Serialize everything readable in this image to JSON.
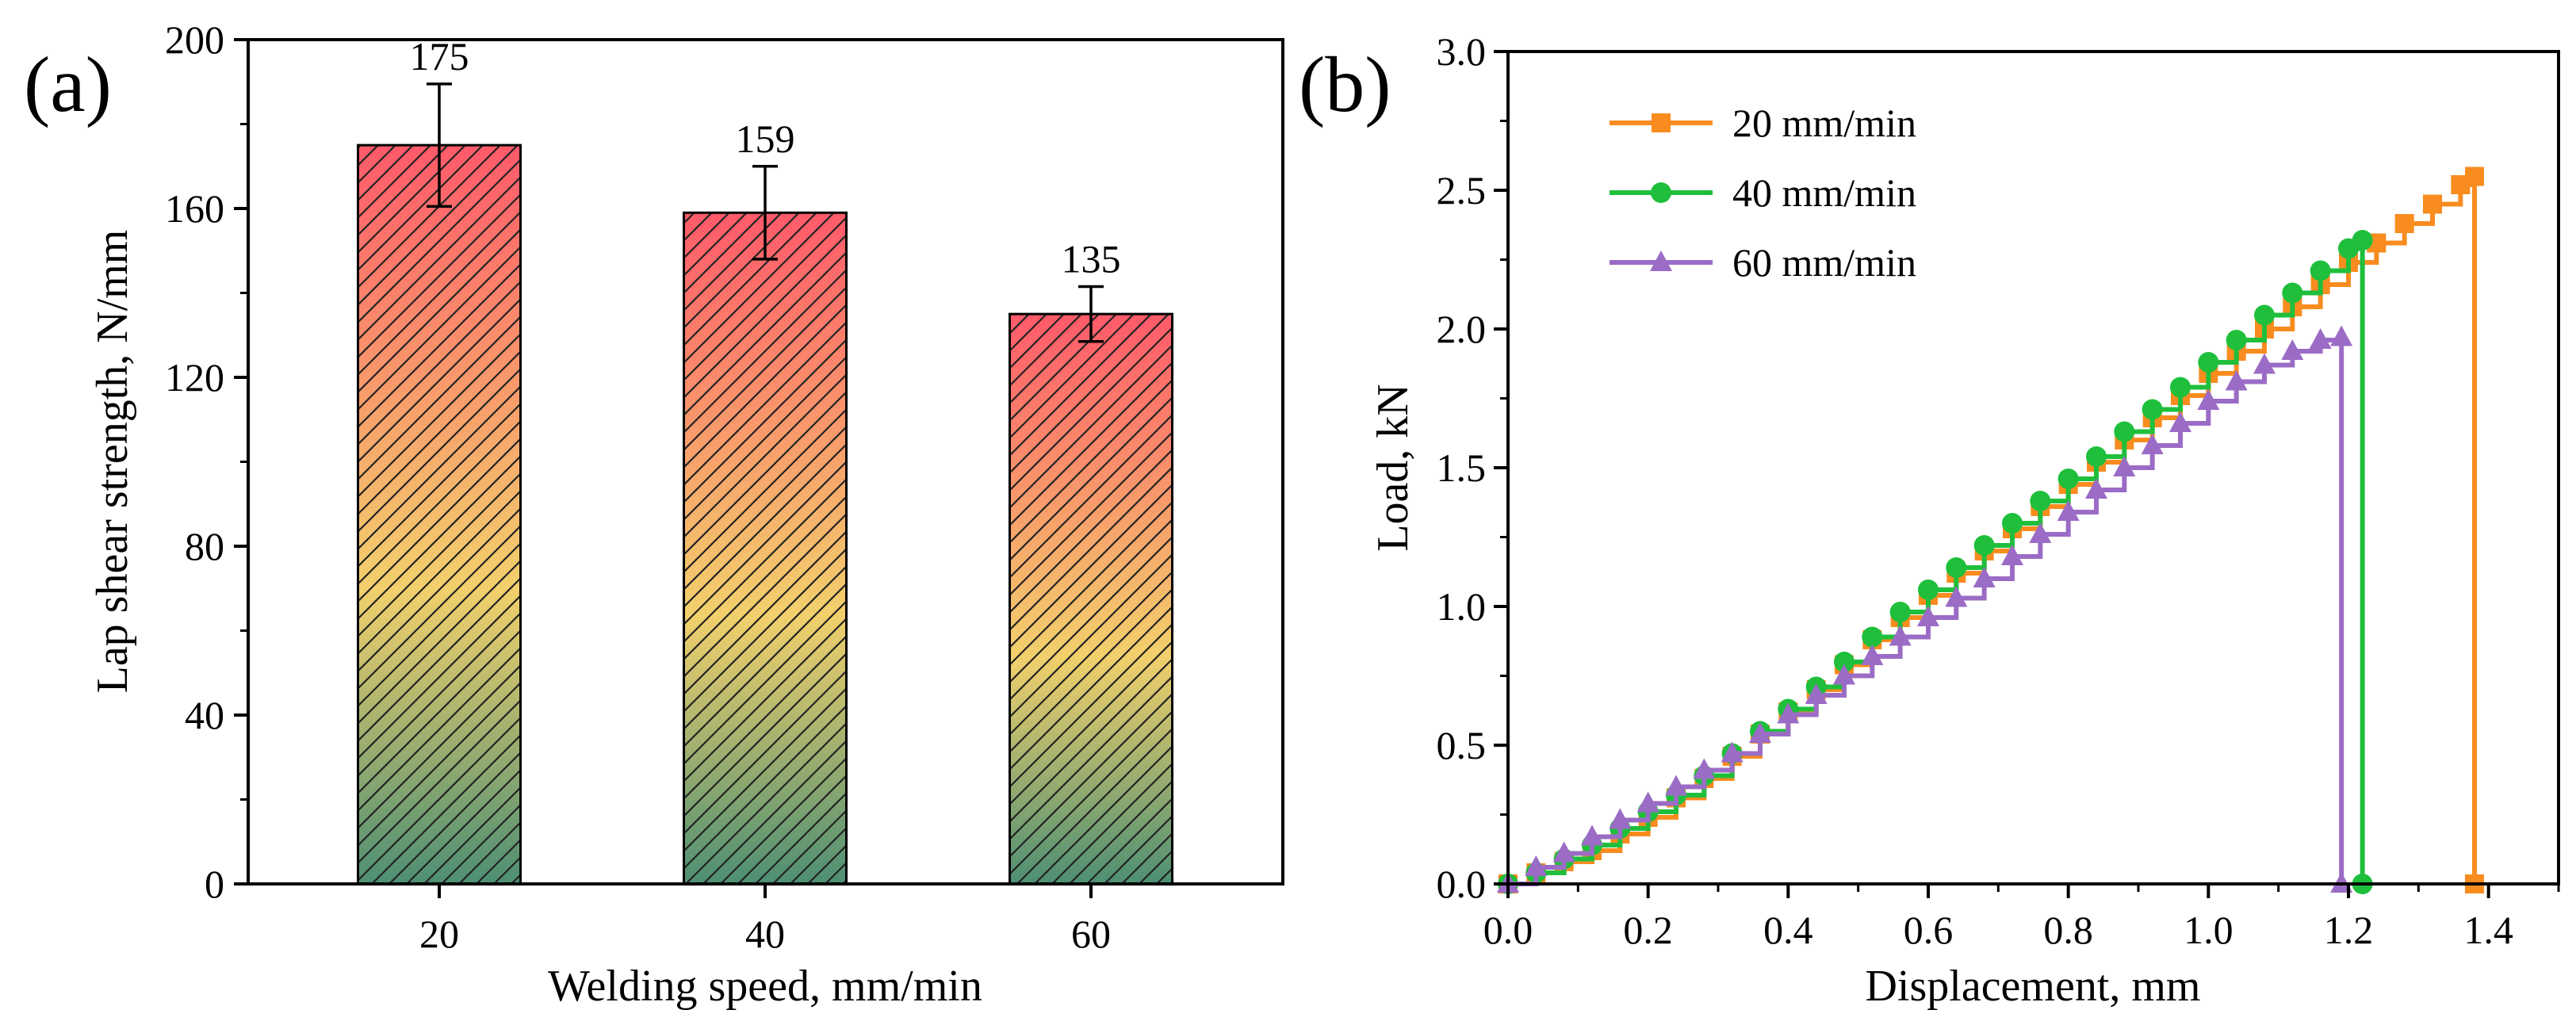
{
  "colors": {
    "orange": "#f98c1f",
    "green": "#1fbf3c",
    "purple": "#9b6cc6",
    "bar_top": "#ff5a6a",
    "bar_mid": "#f2d06c",
    "bar_bottom": "#4d8f73"
  },
  "chart_data": [
    {
      "type": "bar",
      "panel_label": "(a)",
      "categories": [
        "20",
        "40",
        "60"
      ],
      "values": [
        175,
        159,
        135
      ],
      "value_labels": [
        "175",
        "159",
        "135"
      ],
      "errors": [
        14.5,
        11,
        6.5
      ],
      "xlabel": "Welding speed, mm/min",
      "ylabel": "Lap shear strength, N/mm",
      "ylim": [
        0,
        200
      ],
      "yticks": [
        0,
        40,
        80,
        120,
        160,
        200
      ],
      "ytick_labels": [
        "0",
        "40",
        "80",
        "120",
        "160",
        "200"
      ],
      "fill": "gradient with diagonal hatch",
      "grid": false
    },
    {
      "type": "line",
      "panel_label": "(b)",
      "xlabel": "Displacement, mm",
      "ylabel": "Load, kN",
      "xlim": [
        0,
        1.5
      ],
      "ylim": [
        0,
        3.0
      ],
      "xticks": [
        0,
        0.2,
        0.4,
        0.6,
        0.8,
        1.0,
        1.2,
        1.4
      ],
      "xtick_labels": [
        "0.0",
        "0.2",
        "0.4",
        "0.6",
        "0.8",
        "1.0",
        "1.2",
        "1.4"
      ],
      "yticks": [
        0,
        0.5,
        1.0,
        1.5,
        2.0,
        2.5,
        3.0
      ],
      "ytick_labels": [
        "0.0",
        "0.5",
        "1.0",
        "1.5",
        "2.0",
        "2.5",
        "3.0"
      ],
      "legend_position": "top-left",
      "grid": false,
      "series": [
        {
          "name": "20 mm/min",
          "marker": "square",
          "color": "#f98c1f",
          "x": [
            0.0,
            0.04,
            0.08,
            0.12,
            0.16,
            0.2,
            0.24,
            0.28,
            0.32,
            0.36,
            0.4,
            0.44,
            0.48,
            0.52,
            0.56,
            0.6,
            0.64,
            0.68,
            0.72,
            0.76,
            0.8,
            0.84,
            0.88,
            0.92,
            0.96,
            1.0,
            1.04,
            1.08,
            1.12,
            1.16,
            1.2,
            1.24,
            1.28,
            1.32,
            1.36,
            1.38,
            1.38
          ],
          "y": [
            0.0,
            0.04,
            0.08,
            0.12,
            0.18,
            0.24,
            0.31,
            0.38,
            0.46,
            0.54,
            0.62,
            0.7,
            0.79,
            0.88,
            0.96,
            1.04,
            1.12,
            1.2,
            1.28,
            1.36,
            1.44,
            1.52,
            1.6,
            1.68,
            1.76,
            1.84,
            1.92,
            2.0,
            2.08,
            2.16,
            2.24,
            2.31,
            2.38,
            2.45,
            2.52,
            2.55,
            0.0
          ]
        },
        {
          "name": "40 mm/min",
          "marker": "circle",
          "color": "#1fbf3c",
          "x": [
            0.0,
            0.04,
            0.08,
            0.12,
            0.16,
            0.2,
            0.24,
            0.28,
            0.32,
            0.36,
            0.4,
            0.44,
            0.48,
            0.52,
            0.56,
            0.6,
            0.64,
            0.68,
            0.72,
            0.76,
            0.8,
            0.84,
            0.88,
            0.92,
            0.96,
            1.0,
            1.04,
            1.08,
            1.12,
            1.16,
            1.2,
            1.22,
            1.22
          ],
          "y": [
            0.0,
            0.04,
            0.09,
            0.14,
            0.2,
            0.26,
            0.32,
            0.39,
            0.47,
            0.55,
            0.63,
            0.71,
            0.8,
            0.89,
            0.98,
            1.06,
            1.14,
            1.22,
            1.3,
            1.38,
            1.46,
            1.54,
            1.63,
            1.71,
            1.79,
            1.88,
            1.96,
            2.05,
            2.13,
            2.21,
            2.29,
            2.32,
            0.0
          ]
        },
        {
          "name": "60 mm/min",
          "marker": "triangle",
          "color": "#9b6cc6",
          "x": [
            0.0,
            0.04,
            0.08,
            0.12,
            0.16,
            0.2,
            0.24,
            0.28,
            0.32,
            0.36,
            0.4,
            0.44,
            0.48,
            0.52,
            0.56,
            0.6,
            0.64,
            0.68,
            0.72,
            0.76,
            0.8,
            0.84,
            0.88,
            0.92,
            0.96,
            1.0,
            1.04,
            1.08,
            1.12,
            1.16,
            1.19,
            1.19
          ],
          "y": [
            0.0,
            0.06,
            0.11,
            0.17,
            0.23,
            0.29,
            0.35,
            0.41,
            0.47,
            0.54,
            0.61,
            0.68,
            0.75,
            0.82,
            0.89,
            0.96,
            1.03,
            1.1,
            1.18,
            1.26,
            1.34,
            1.42,
            1.5,
            1.58,
            1.66,
            1.74,
            1.81,
            1.87,
            1.92,
            1.96,
            1.97,
            0.0
          ]
        }
      ]
    }
  ]
}
